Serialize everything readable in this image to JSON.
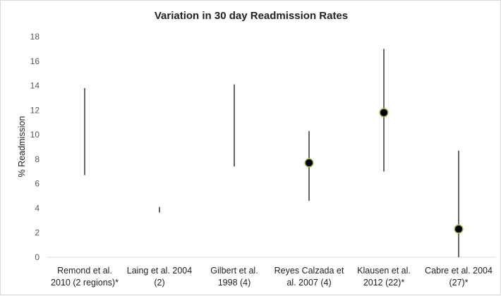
{
  "chart_data": {
    "type": "scatter",
    "title": "Variation in 30 day Readmission Rates",
    "xlabel": "",
    "ylabel": "% Readmission",
    "ylim": [
      0,
      18
    ],
    "yticks": [
      0,
      2,
      4,
      6,
      8,
      10,
      12,
      14,
      16,
      18
    ],
    "grid": false,
    "legend": "none",
    "colors": {
      "range_line": "#000000",
      "point_fill": "#000000",
      "point_stroke": "#9bbb59"
    },
    "categories": [
      {
        "lines": [
          "Remond et al.",
          "2010 (2 regions)*"
        ],
        "low": 6.7,
        "high": 13.8,
        "value": null
      },
      {
        "lines": [
          "Laing et al. 2004",
          "(2)"
        ],
        "low": 3.65,
        "high": 4.1,
        "value": null
      },
      {
        "lines": [
          "Gilbert et al.",
          "1998 (4)"
        ],
        "low": 7.4,
        "high": 14.1,
        "value": null
      },
      {
        "lines": [
          "Reyes Calzada et",
          "al. 2007 (4)"
        ],
        "low": 4.6,
        "high": 10.3,
        "value": 7.7
      },
      {
        "lines": [
          "Klausen et al.",
          "2012 (22)*"
        ],
        "low": 7.0,
        "high": 17.0,
        "value": 11.8
      },
      {
        "lines": [
          "Cabre et al. 2004",
          "(27)*"
        ],
        "low": 0.0,
        "high": 8.7,
        "value": 2.3
      }
    ]
  }
}
